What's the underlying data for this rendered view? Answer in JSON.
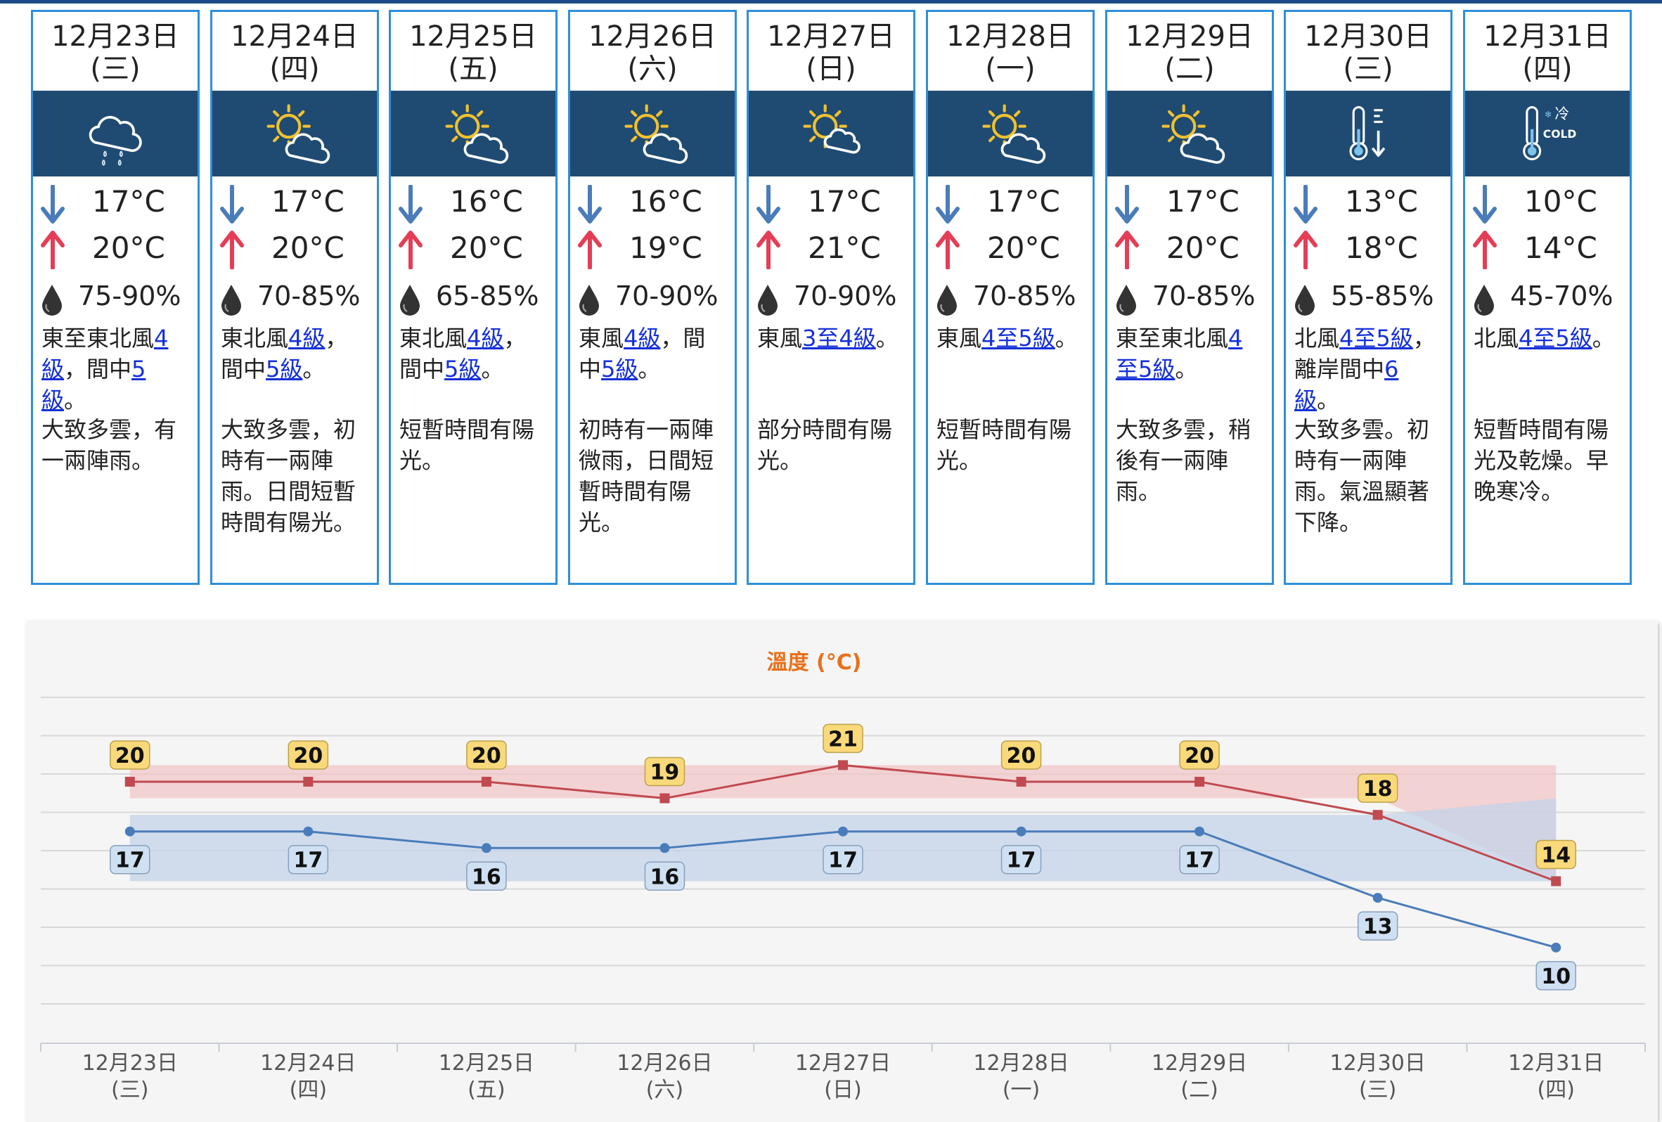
{
  "days": [
    {
      "date": "12月23日",
      "weekday": "(三)",
      "icon": "light-rain-icon",
      "low": "17°C",
      "high": "20°C",
      "humidity": "75-90%",
      "wind": [
        {
          "t": "東至東北風"
        },
        {
          "t": "4級",
          "link": true
        },
        {
          "t": "，間中"
        },
        {
          "t": "5級",
          "link": true
        },
        {
          "t": "。"
        }
      ],
      "desc": "大致多雲，有一兩陣雨。"
    },
    {
      "date": "12月24日",
      "weekday": "(四)",
      "icon": "sunny-periods-icon",
      "low": "17°C",
      "high": "20°C",
      "humidity": "70-85%",
      "wind": [
        {
          "t": "東北風"
        },
        {
          "t": "4級",
          "link": true
        },
        {
          "t": "，間中"
        },
        {
          "t": "5級",
          "link": true
        },
        {
          "t": "。"
        }
      ],
      "desc": "大致多雲，初時有一兩陣雨。日間短暫時間有陽光。"
    },
    {
      "date": "12月25日",
      "weekday": "(五)",
      "icon": "sunny-periods-icon",
      "low": "16°C",
      "high": "20°C",
      "humidity": "65-85%",
      "wind": [
        {
          "t": "東北風"
        },
        {
          "t": "4級",
          "link": true
        },
        {
          "t": "，間中"
        },
        {
          "t": "5級",
          "link": true
        },
        {
          "t": "。"
        }
      ],
      "desc": "短暫時間有陽光。"
    },
    {
      "date": "12月26日",
      "weekday": "(六)",
      "icon": "sunny-periods-icon",
      "low": "16°C",
      "high": "19°C",
      "humidity": "70-90%",
      "wind": [
        {
          "t": "東風"
        },
        {
          "t": "4級",
          "link": true
        },
        {
          "t": "，間中"
        },
        {
          "t": "5級",
          "link": true
        },
        {
          "t": "。"
        }
      ],
      "desc": "初時有一兩陣微雨，日間短暫時間有陽光。"
    },
    {
      "date": "12月27日",
      "weekday": "(日)",
      "icon": "sunny-intervals-icon",
      "low": "17°C",
      "high": "21°C",
      "humidity": "70-90%",
      "wind": [
        {
          "t": "東風"
        },
        {
          "t": "3至4級",
          "link": true
        },
        {
          "t": "。"
        }
      ],
      "desc": "部分時間有陽光。"
    },
    {
      "date": "12月28日",
      "weekday": "(一)",
      "icon": "sunny-periods-icon",
      "low": "17°C",
      "high": "20°C",
      "humidity": "70-85%",
      "wind": [
        {
          "t": "東風"
        },
        {
          "t": "4至5級",
          "link": true
        },
        {
          "t": "。"
        }
      ],
      "desc": "短暫時間有陽光。"
    },
    {
      "date": "12月29日",
      "weekday": "(二)",
      "icon": "sunny-periods-icon",
      "low": "17°C",
      "high": "20°C",
      "humidity": "70-85%",
      "wind": [
        {
          "t": "東至東北風"
        },
        {
          "t": "4至5級",
          "link": true
        },
        {
          "t": "。"
        }
      ],
      "desc": "大致多雲，稍後有一兩陣雨。"
    },
    {
      "date": "12月30日",
      "weekday": "(三)",
      "icon": "temperature-drop-icon",
      "low": "13°C",
      "high": "18°C",
      "humidity": "55-85%",
      "wind": [
        {
          "t": "北風"
        },
        {
          "t": "4至5級",
          "link": true
        },
        {
          "t": "，離岸間中"
        },
        {
          "t": "6級",
          "link": true
        },
        {
          "t": "。"
        }
      ],
      "desc": "大致多雲。初時有一兩陣雨。氣溫顯著下降。"
    },
    {
      "date": "12月31日",
      "weekday": "(四)",
      "icon": "cold-icon",
      "low": "10°C",
      "high": "14°C",
      "humidity": "45-70%",
      "wind": [
        {
          "t": "北風"
        },
        {
          "t": "4至5級",
          "link": true
        },
        {
          "t": "。"
        }
      ],
      "desc": "短暫時間有陽光及乾燥。早晚寒冷。"
    }
  ],
  "icon_texts": {
    "cold_char": "冷",
    "cold_word": "COLD"
  },
  "colors": {
    "card_border": "#2e8fd9",
    "icon_band": "#1f4b73",
    "high": "#c04a4f",
    "low": "#4a7cba",
    "link": "#1530d8",
    "title": "#e8701a"
  },
  "chart_data": {
    "type": "line",
    "title": "溫度 (°C)",
    "categories": [
      "12月23日",
      "12月24日",
      "12月25日",
      "12月26日",
      "12月27日",
      "12月28日",
      "12月29日",
      "12月30日",
      "12月31日"
    ],
    "category_sub": [
      "(三)",
      "(四)",
      "(五)",
      "(六)",
      "(日)",
      "(一)",
      "(二)",
      "(三)",
      "(四)"
    ],
    "series": [
      {
        "key": "high",
        "values": [
          20,
          20,
          20,
          19,
          21,
          20,
          20,
          18,
          14
        ]
      },
      {
        "key": "low",
        "values": [
          17,
          17,
          16,
          16,
          17,
          17,
          17,
          13,
          10
        ]
      }
    ],
    "bands": [
      {
        "key": "high-range",
        "lower": [
          19,
          19,
          19,
          19,
          19,
          19,
          19,
          19,
          19
        ],
        "upper": [
          21,
          21,
          21,
          21,
          21,
          21,
          21,
          21,
          21
        ],
        "lower_end": [
          19,
          19,
          19,
          19,
          19,
          19,
          19,
          19,
          14
        ],
        "note": "historical"
      },
      {
        "key": "low-range",
        "lower": [
          14,
          14,
          14,
          14,
          14,
          14,
          14,
          14,
          14
        ],
        "upper": [
          18,
          18,
          18,
          18,
          18,
          18,
          18,
          18,
          19
        ]
      }
    ],
    "ylim": [
      5.5,
      25
    ],
    "grid": true
  }
}
